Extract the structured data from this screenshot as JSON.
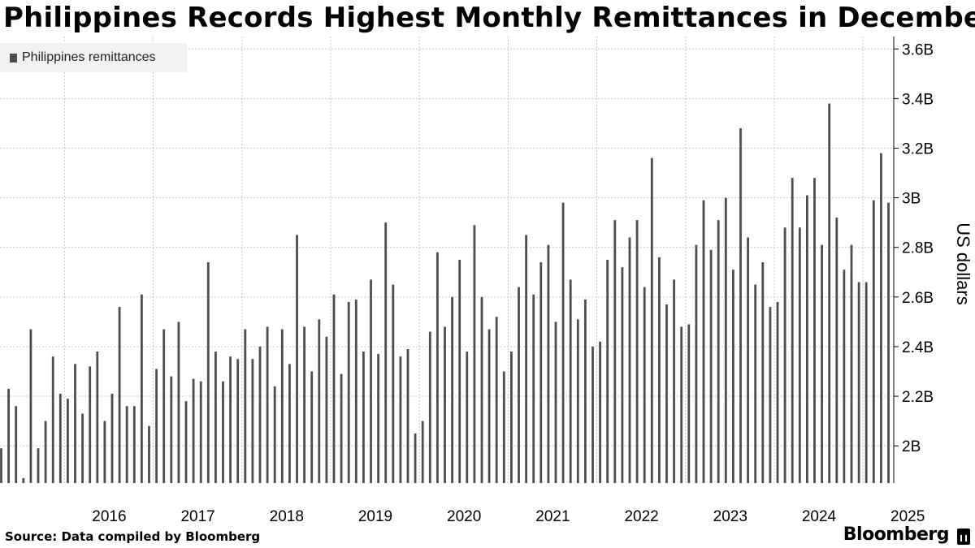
{
  "title": "Philippines Records Highest Monthly Remittances in December",
  "legend": {
    "label": "Philippines remittances"
  },
  "source": "Source: Data compiled by Bloomberg",
  "brand": "Bloomberg",
  "colors": {
    "bar": "#4d4d4d",
    "grid": "#c8c8c8",
    "legend_bg": "#f1f1f1"
  },
  "chart_data": {
    "type": "bar",
    "ylabel": "US dollars",
    "y_axis_side": "right",
    "ylim": [
      1.85,
      3.65
    ],
    "y_ticks": [
      2.0,
      2.2,
      2.4,
      2.6,
      2.8,
      3.0,
      3.2,
      3.4,
      3.6
    ],
    "y_tick_labels": [
      "2B",
      "2.2B",
      "2.4B",
      "2.6B",
      "2.8B",
      "3B",
      "3.2B",
      "3.4B",
      "3.6B"
    ],
    "x_tick_labels": [
      "2016",
      "2017",
      "2018",
      "2019",
      "2020",
      "2021",
      "2022",
      "2023",
      "2024",
      "2025"
    ],
    "grid": true,
    "legend_position": "top-left",
    "x_start": "2015-04",
    "x_end": "2025-04",
    "series": [
      {
        "name": "Philippines remittances",
        "values": [
          1.99,
          2.23,
          2.16,
          1.87,
          2.47,
          1.99,
          2.1,
          2.36,
          2.21,
          2.19,
          2.33,
          2.13,
          2.32,
          2.38,
          2.1,
          2.21,
          2.56,
          2.16,
          2.16,
          2.61,
          2.08,
          2.31,
          2.47,
          2.28,
          2.5,
          2.18,
          2.27,
          2.26,
          2.74,
          2.38,
          2.26,
          2.36,
          2.35,
          2.47,
          2.35,
          2.4,
          2.48,
          2.24,
          2.47,
          2.33,
          2.85,
          2.48,
          2.3,
          2.51,
          2.44,
          2.61,
          2.29,
          2.58,
          2.59,
          2.38,
          2.67,
          2.37,
          2.9,
          2.65,
          2.36,
          2.39,
          2.05,
          2.1,
          2.46,
          2.78,
          2.48,
          2.6,
          2.75,
          2.38,
          2.89,
          2.6,
          2.47,
          2.52,
          2.3,
          2.38,
          2.64,
          2.85,
          2.61,
          2.74,
          2.81,
          2.5,
          2.98,
          2.67,
          2.51,
          2.59,
          2.4,
          2.42,
          2.75,
          2.91,
          2.72,
          2.84,
          2.91,
          2.64,
          3.16,
          2.76,
          2.57,
          2.67,
          2.48,
          2.49,
          2.81,
          2.99,
          2.79,
          2.91,
          3.0,
          2.71,
          3.28,
          2.84,
          2.65,
          2.74,
          2.56,
          2.58,
          2.88,
          3.08,
          2.88,
          3.01,
          3.08,
          2.81,
          3.38,
          2.92,
          2.71,
          2.81,
          2.66,
          2.66,
          2.99,
          3.18,
          2.98
        ]
      }
    ]
  }
}
